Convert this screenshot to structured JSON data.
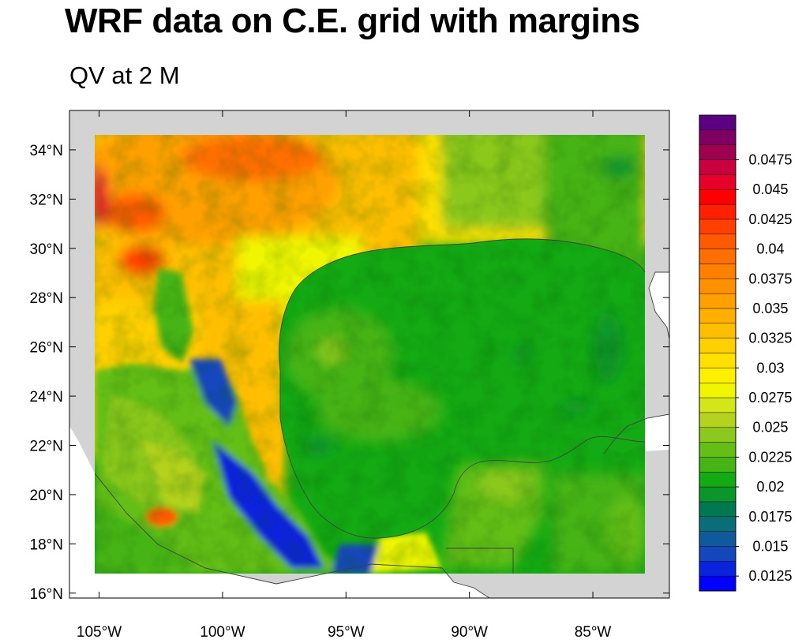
{
  "title": "WRF data on C.E. grid with margins",
  "subtitle": "QV at 2 M",
  "map": {
    "projection": "cylindrical equidistant",
    "lon_range": [
      -106.2,
      -81.9
    ],
    "lat_range": [
      15.8,
      35.6
    ],
    "data_lon_range": [
      -105.2,
      -82.9
    ],
    "data_lat_range": [
      16.8,
      34.6
    ],
    "lon_ticks": [
      {
        "value": -105,
        "label": "105°W"
      },
      {
        "value": -100,
        "label": "100°W"
      },
      {
        "value": -95,
        "label": "95°W"
      },
      {
        "value": -90,
        "label": "90°W"
      },
      {
        "value": -85,
        "label": "85°W"
      }
    ],
    "lat_ticks": [
      {
        "value": 16,
        "label": "16°N"
      },
      {
        "value": 18,
        "label": "18°N"
      },
      {
        "value": 20,
        "label": "20°N"
      },
      {
        "value": 22,
        "label": "22°N"
      },
      {
        "value": 24,
        "label": "24°N"
      },
      {
        "value": 26,
        "label": "26°N"
      },
      {
        "value": 28,
        "label": "28°N"
      },
      {
        "value": 30,
        "label": "30°N"
      },
      {
        "value": 32,
        "label": "32°N"
      },
      {
        "value": 34,
        "label": "34°N"
      }
    ],
    "land_color": "#d3d3d3",
    "ocean_color": "#ffffff"
  },
  "colorbar": {
    "colors": [
      "#0000ff",
      "#0a23dc",
      "#1446bc",
      "#0f5a9a",
      "#0a6e78",
      "#007850",
      "#0a962a",
      "#14aa14",
      "#46b414",
      "#64be14",
      "#8cc81e",
      "#b4d21e",
      "#d2e61a",
      "#f0f500",
      "#ffef00",
      "#ffe000",
      "#ffd000",
      "#ffbf00",
      "#ffaf00",
      "#ffa000",
      "#ff9000",
      "#ff8000",
      "#ff6e00",
      "#ff5a00",
      "#ff4000",
      "#ff2000",
      "#ff0000",
      "#e6002a",
      "#c80040",
      "#a00050",
      "#7e0060",
      "#5a0080"
    ],
    "labels": [
      {
        "value": 0.0125,
        "text": "0.0125"
      },
      {
        "value": 0.015,
        "text": "0.015"
      },
      {
        "value": 0.0175,
        "text": "0.0175"
      },
      {
        "value": 0.02,
        "text": "0.02"
      },
      {
        "value": 0.0225,
        "text": "0.0225"
      },
      {
        "value": 0.025,
        "text": "0.025"
      },
      {
        "value": 0.0275,
        "text": "0.0275"
      },
      {
        "value": 0.03,
        "text": "0.03"
      },
      {
        "value": 0.0325,
        "text": "0.0325"
      },
      {
        "value": 0.035,
        "text": "0.035"
      },
      {
        "value": 0.0375,
        "text": "0.0375"
      },
      {
        "value": 0.04,
        "text": "0.04"
      },
      {
        "value": 0.0425,
        "text": "0.0425"
      },
      {
        "value": 0.045,
        "text": "0.045"
      },
      {
        "value": 0.0475,
        "text": "0.0475"
      }
    ]
  }
}
